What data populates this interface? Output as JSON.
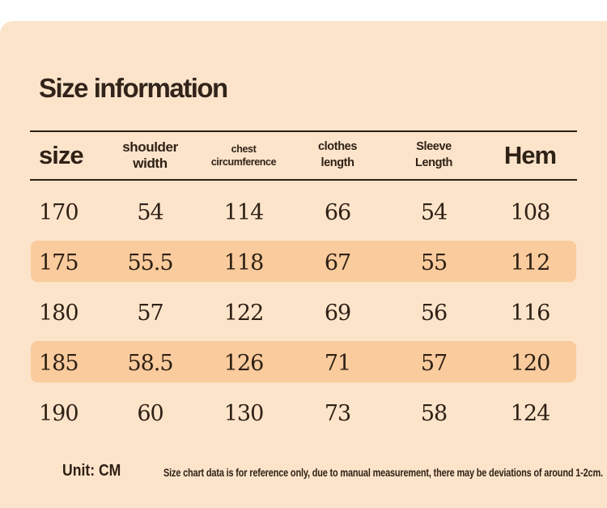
{
  "title": "Size information",
  "colors": {
    "panel_bg": "#fce4cb",
    "row_highlight": "#f9cb9d",
    "text_dark": "#2f2115",
    "rule_line": "#2c1e12"
  },
  "table": {
    "columns": [
      {
        "key": "size",
        "label": "size"
      },
      {
        "key": "shoulder_width",
        "label": "shoulder\nwidth"
      },
      {
        "key": "chest_circumference",
        "label": "chest\ncircumference"
      },
      {
        "key": "clothes_length",
        "label": "clothes\nlength"
      },
      {
        "key": "sleeve_length",
        "label": "Sleeve\nLength"
      },
      {
        "key": "hem",
        "label": "Hem"
      }
    ],
    "rows": [
      {
        "cells": [
          "170",
          "54",
          "114",
          "66",
          "54",
          "108"
        ],
        "highlighted": false
      },
      {
        "cells": [
          "175",
          "55.5",
          "118",
          "67",
          "55",
          "112"
        ],
        "highlighted": true
      },
      {
        "cells": [
          "180",
          "57",
          "122",
          "69",
          "56",
          "116"
        ],
        "highlighted": false
      },
      {
        "cells": [
          "185",
          "58.5",
          "126",
          "71",
          "57",
          "120"
        ],
        "highlighted": true
      },
      {
        "cells": [
          "190",
          "60",
          "130",
          "73",
          "58",
          "124"
        ],
        "highlighted": false
      }
    ]
  },
  "footer": {
    "unit_label": "Unit: CM",
    "note": "Size chart data is for reference only, due to manual measurement, there may be deviations of around 1-2cm."
  }
}
